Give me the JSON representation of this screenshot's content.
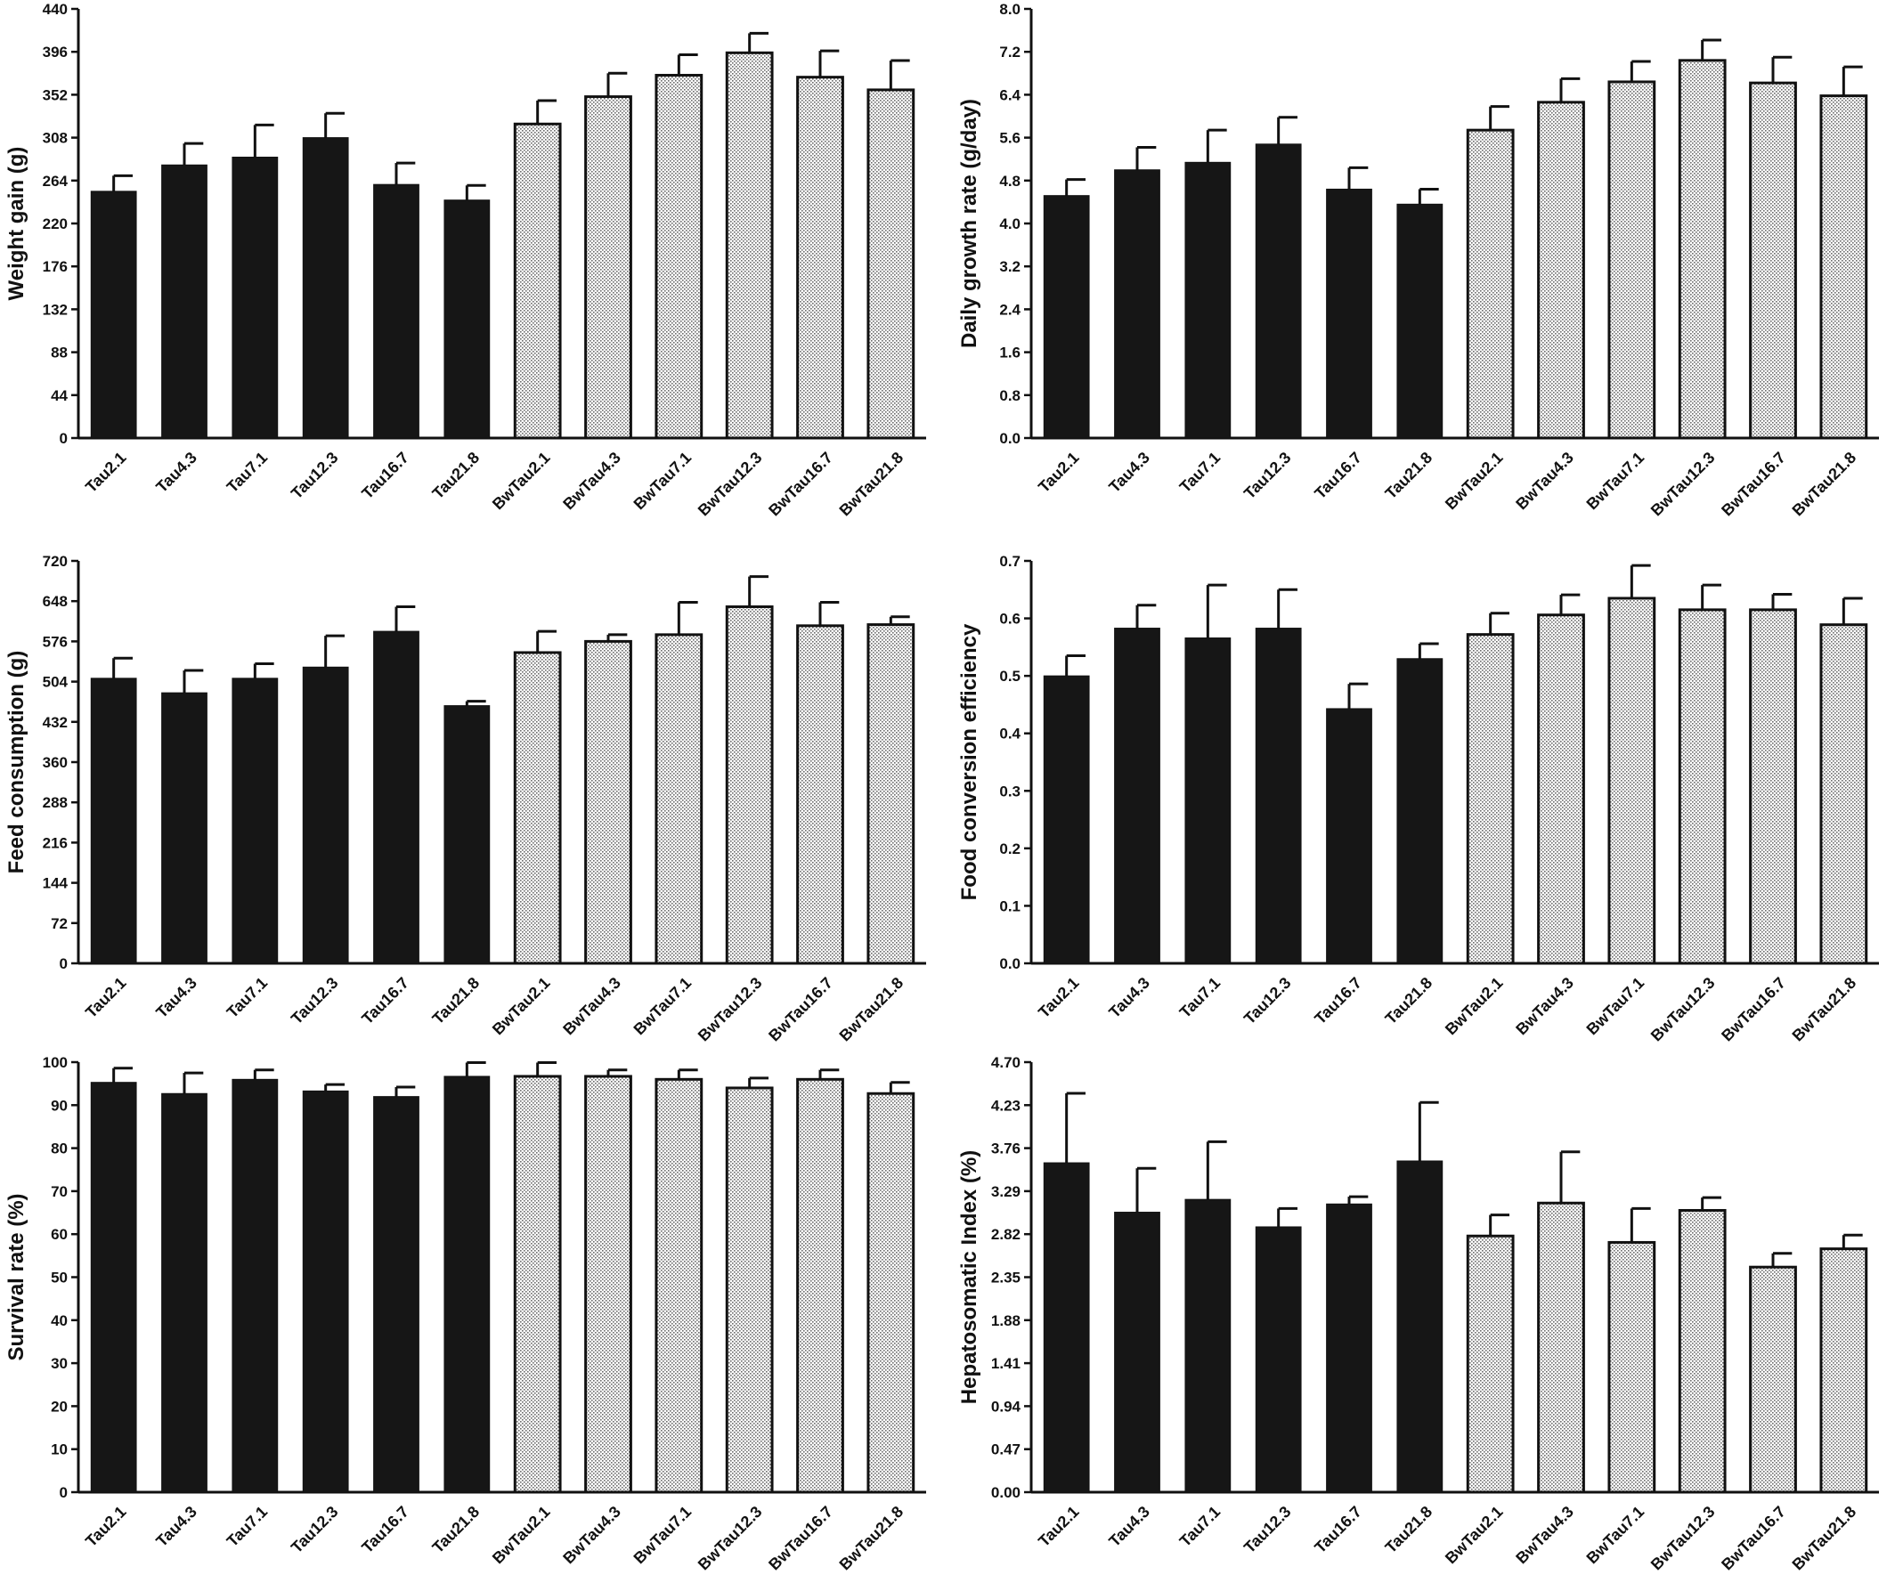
{
  "chart_data": [
    {
      "type": "bar",
      "ylabel": "Weight gain (g)",
      "categories": [
        "Tau2.1",
        "Tau4.3",
        "Tau7.1",
        "Tau12.3",
        "Tau16.7",
        "Tau21.8",
        "BwTau2.1",
        "BwTau4.3",
        "BwTau7.1",
        "BwTau12.3",
        "BwTau16.7",
        "BwTau21.8"
      ],
      "values": [
        253,
        280,
        288,
        308,
        260,
        244,
        322,
        350,
        372,
        395,
        370,
        357
      ],
      "errors": [
        16,
        22,
        33,
        25,
        22,
        15,
        24,
        24,
        21,
        20,
        27,
        30
      ],
      "ylim": [
        0,
        440
      ],
      "yticks": [
        "0",
        "44",
        "88",
        "132",
        "176",
        "220",
        "264",
        "308",
        "352",
        "396",
        "440"
      ],
      "fill": [
        "solid",
        "solid",
        "solid",
        "solid",
        "solid",
        "solid",
        "hatched",
        "hatched",
        "hatched",
        "hatched",
        "hatched",
        "hatched"
      ]
    },
    {
      "type": "bar",
      "ylabel": "Daily growth rate (g/day)",
      "categories": [
        "Tau2.1",
        "Tau4.3",
        "Tau7.1",
        "Tau12.3",
        "Tau16.7",
        "Tau21.8",
        "BwTau2.1",
        "BwTau4.3",
        "BwTau7.1",
        "BwTau12.3",
        "BwTau16.7",
        "BwTau21.8"
      ],
      "values": [
        4.52,
        5.0,
        5.14,
        5.48,
        4.64,
        4.36,
        5.74,
        6.26,
        6.64,
        7.04,
        6.62,
        6.38
      ],
      "errors": [
        0.3,
        0.42,
        0.6,
        0.5,
        0.4,
        0.28,
        0.44,
        0.44,
        0.38,
        0.38,
        0.48,
        0.54
      ],
      "ylim": [
        0,
        8.0
      ],
      "yticks": [
        "0.0",
        "0.8",
        "1.6",
        "2.4",
        "3.2",
        "4.0",
        "4.8",
        "5.6",
        "6.4",
        "7.2",
        "8.0"
      ],
      "fill": [
        "solid",
        "solid",
        "solid",
        "solid",
        "solid",
        "solid",
        "hatched",
        "hatched",
        "hatched",
        "hatched",
        "hatched",
        "hatched"
      ]
    },
    {
      "type": "bar",
      "ylabel": "Feed consumption (g)",
      "categories": [
        "Tau2.1",
        "Tau4.3",
        "Tau7.1",
        "Tau12.3",
        "Tau16.7",
        "Tau21.8",
        "BwTau2.1",
        "BwTau4.3",
        "BwTau7.1",
        "BwTau12.3",
        "BwTau16.7",
        "BwTau21.8"
      ],
      "values": [
        510,
        484,
        510,
        530,
        594,
        461,
        556,
        576,
        588,
        638,
        604,
        606
      ],
      "errors": [
        36,
        40,
        26,
        56,
        44,
        8,
        38,
        12,
        58,
        54,
        42,
        14
      ],
      "ylim": [
        0,
        720
      ],
      "yticks": [
        "0",
        "72",
        "144",
        "216",
        "288",
        "360",
        "432",
        "504",
        "576",
        "648",
        "720"
      ],
      "fill": [
        "solid",
        "solid",
        "solid",
        "solid",
        "solid",
        "solid",
        "hatched",
        "hatched",
        "hatched",
        "hatched",
        "hatched",
        "hatched"
      ]
    },
    {
      "type": "bar",
      "ylabel": "Food conversion efficiency",
      "categories": [
        "Tau2.1",
        "Tau4.3",
        "Tau7.1",
        "Tau12.3",
        "Tau16.7",
        "Tau21.8",
        "BwTau2.1",
        "BwTau4.3",
        "BwTau7.1",
        "BwTau12.3",
        "BwTau16.7",
        "BwTau21.8"
      ],
      "values": [
        0.5,
        0.583,
        0.566,
        0.583,
        0.443,
        0.53,
        0.572,
        0.606,
        0.635,
        0.615,
        0.615,
        0.589
      ],
      "errors": [
        0.035,
        0.04,
        0.092,
        0.067,
        0.043,
        0.026,
        0.037,
        0.035,
        0.057,
        0.043,
        0.027,
        0.046
      ],
      "ylim": [
        0,
        0.7
      ],
      "yticks": [
        "0.0",
        "0.1",
        "0.2",
        "0.3",
        "0.4",
        "0.5",
        "0.6",
        "0.7"
      ],
      "fill": [
        "solid",
        "solid",
        "solid",
        "solid",
        "solid",
        "solid",
        "hatched",
        "hatched",
        "hatched",
        "hatched",
        "hatched",
        "hatched"
      ]
    },
    {
      "type": "bar",
      "ylabel": "Survival rate (%)",
      "categories": [
        "Tau2.1",
        "Tau4.3",
        "Tau7.1",
        "Tau12.3",
        "Tau16.7",
        "Tau21.8",
        "BwTau2.1",
        "BwTau4.3",
        "BwTau7.1",
        "BwTau12.3",
        "BwTau16.7",
        "BwTau21.8"
      ],
      "values": [
        95.3,
        92.7,
        96.0,
        93.3,
        92.0,
        96.7,
        96.7,
        96.7,
        96.0,
        94.0,
        96.0,
        92.7
      ],
      "errors": [
        3.3,
        4.8,
        2.2,
        1.5,
        2.2,
        3.2,
        3.2,
        1.5,
        2.2,
        2.3,
        2.2,
        2.6
      ],
      "ylim": [
        0,
        100
      ],
      "yticks": [
        "0",
        "10",
        "20",
        "30",
        "40",
        "50",
        "60",
        "70",
        "80",
        "90",
        "100"
      ],
      "fill": [
        "solid",
        "solid",
        "solid",
        "solid",
        "solid",
        "solid",
        "hatched",
        "hatched",
        "hatched",
        "hatched",
        "hatched",
        "hatched"
      ]
    },
    {
      "type": "bar",
      "ylabel": "Hepatosomatic Index (%)",
      "categories": [
        "Tau2.1",
        "Tau4.3",
        "Tau7.1",
        "Tau12.3",
        "Tau16.7",
        "Tau21.8",
        "BwTau2.1",
        "BwTau4.3",
        "BwTau7.1",
        "BwTau12.3",
        "BwTau16.7",
        "BwTau21.8"
      ],
      "values": [
        3.6,
        3.06,
        3.2,
        2.9,
        3.15,
        3.62,
        2.8,
        3.16,
        2.73,
        3.08,
        2.46,
        2.66
      ],
      "errors": [
        0.76,
        0.48,
        0.63,
        0.2,
        0.08,
        0.64,
        0.23,
        0.56,
        0.37,
        0.14,
        0.15,
        0.15
      ],
      "ylim": [
        0,
        4.7
      ],
      "yticks": [
        "0.00",
        "0.47",
        "0.94",
        "1.41",
        "1.88",
        "2.35",
        "2.82",
        "3.29",
        "3.76",
        "4.23",
        "4.70"
      ],
      "fill": [
        "solid",
        "solid",
        "solid",
        "solid",
        "solid",
        "solid",
        "hatched",
        "hatched",
        "hatched",
        "hatched",
        "hatched",
        "hatched"
      ]
    }
  ]
}
